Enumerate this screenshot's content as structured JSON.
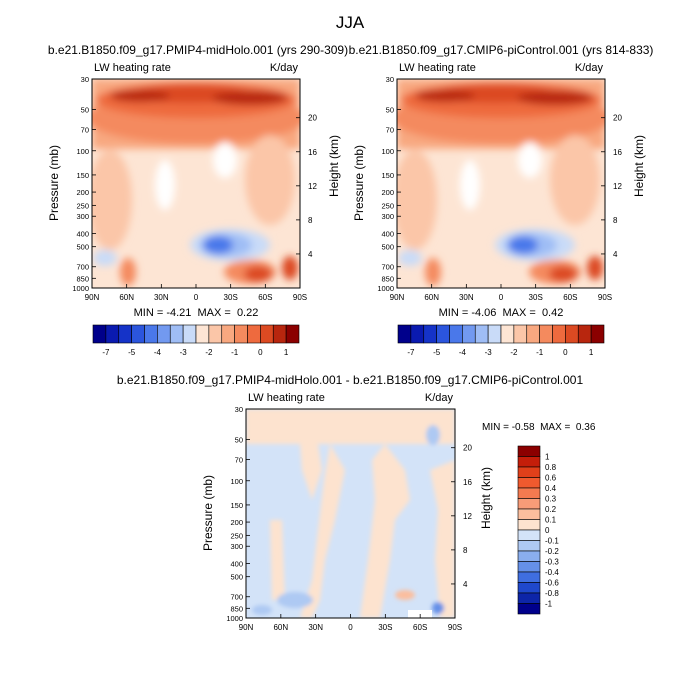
{
  "figure": {
    "title": "JJA"
  },
  "chart_data": [
    {
      "type": "heatmap",
      "title": "b.e21.B1850.f09_g17.PMIP4-midHolo.001 (yrs 290-309)",
      "left_label": "LW heating rate",
      "right_label": "K/day",
      "ylabel": "Pressure (mb)",
      "ylabel_right": "Height (km)",
      "x_ticks": [
        "90N",
        "60N",
        "30N",
        "0",
        "30S",
        "60S",
        "90S"
      ],
      "p_ticks": [
        "30",
        "50",
        "70",
        "100",
        "150",
        "200",
        "250",
        "300",
        "400",
        "500",
        "700",
        "850",
        "1000"
      ],
      "p_values": [
        30,
        50,
        70,
        100,
        150,
        200,
        250,
        300,
        400,
        500,
        700,
        850,
        1000
      ],
      "z_ticks": [
        "20",
        "16",
        "12",
        "8",
        "4"
      ],
      "z_values": [
        20,
        16,
        12,
        8,
        4
      ],
      "stats": "MIN = -4.21  MAX =  0.22",
      "colorbar": {
        "orientation": "horizontal",
        "labels": [
          "-7",
          "-5",
          "-4",
          "-3",
          "-2",
          "-1",
          "0",
          "1"
        ],
        "colors": [
          "#00008b",
          "#0a1ab0",
          "#1533c8",
          "#2b55dd",
          "#4a78ea",
          "#7299f0",
          "#9fbdf5",
          "#c9dbf8",
          "#fde5d4",
          "#fbc6a8",
          "#f8a880",
          "#f48a5e",
          "#ee6a3e",
          "#dc4a22",
          "#b8260e",
          "#8b0000"
        ]
      }
    },
    {
      "type": "heatmap",
      "title": "b.e21.B1850.f09_g17.CMIP6-piControl.001 (yrs 814-833)",
      "left_label": "LW heating rate",
      "right_label": "K/day",
      "ylabel": "Pressure (mb)",
      "ylabel_right": "Height (km)",
      "x_ticks": [
        "90N",
        "60N",
        "30N",
        "0",
        "30S",
        "60S",
        "90S"
      ],
      "p_ticks": [
        "30",
        "50",
        "70",
        "100",
        "150",
        "200",
        "250",
        "300",
        "400",
        "500",
        "700",
        "850",
        "1000"
      ],
      "p_values": [
        30,
        50,
        70,
        100,
        150,
        200,
        250,
        300,
        400,
        500,
        700,
        850,
        1000
      ],
      "z_ticks": [
        "20",
        "16",
        "12",
        "8",
        "4"
      ],
      "z_values": [
        20,
        16,
        12,
        8,
        4
      ],
      "stats": "MIN = -4.06  MAX =  0.42",
      "colorbar": {
        "orientation": "horizontal",
        "labels": [
          "-7",
          "-5",
          "-4",
          "-3",
          "-2",
          "-1",
          "0",
          "1"
        ],
        "colors": [
          "#00008b",
          "#0a1ab0",
          "#1533c8",
          "#2b55dd",
          "#4a78ea",
          "#7299f0",
          "#9fbdf5",
          "#c9dbf8",
          "#fde5d4",
          "#fbc6a8",
          "#f8a880",
          "#f48a5e",
          "#ee6a3e",
          "#dc4a22",
          "#b8260e",
          "#8b0000"
        ]
      }
    },
    {
      "type": "heatmap",
      "title": "b.e21.B1850.f09_g17.PMIP4-midHolo.001 - b.e21.B1850.f09_g17.CMIP6-piControl.001",
      "left_label": "LW heating rate",
      "right_label": "K/day",
      "ylabel": "Pressure (mb)",
      "ylabel_right": "Height (km)",
      "x_ticks": [
        "90N",
        "60N",
        "30N",
        "0",
        "30S",
        "60S",
        "90S"
      ],
      "p_ticks": [
        "30",
        "50",
        "70",
        "100",
        "150",
        "200",
        "250",
        "300",
        "400",
        "500",
        "700",
        "850",
        "1000"
      ],
      "p_values": [
        30,
        50,
        70,
        100,
        150,
        200,
        250,
        300,
        400,
        500,
        700,
        850,
        1000
      ],
      "z_ticks": [
        "20",
        "16",
        "12",
        "8",
        "4"
      ],
      "z_values": [
        20,
        16,
        12,
        8,
        4
      ],
      "stats": "MIN = -0.58  MAX =  0.36",
      "colorbar": {
        "orientation": "vertical",
        "labels": [
          "1",
          "0.8",
          "0.6",
          "0.4",
          "0.3",
          "0.2",
          "0.1",
          "0",
          "-0.1",
          "-0.2",
          "-0.3",
          "-0.4",
          "-0.6",
          "-0.8",
          "-1"
        ],
        "colors": [
          "#8b0000",
          "#c41e0a",
          "#e0401a",
          "#f05a2e",
          "#f47a50",
          "#f89c78",
          "#fbbe9e",
          "#fde3cf",
          "#d3e3f8",
          "#aec9f3",
          "#8aaeee",
          "#6590e8",
          "#3f6ee0",
          "#1f48cc",
          "#0d25a8",
          "#00008b"
        ]
      }
    }
  ]
}
